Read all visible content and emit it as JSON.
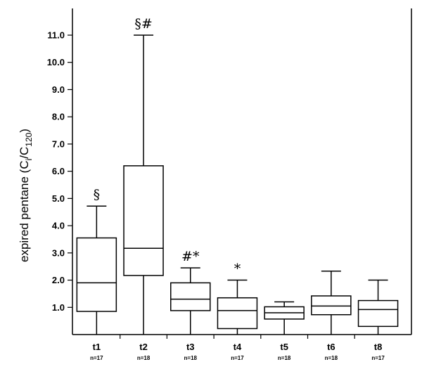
{
  "chart_data": {
    "type": "box",
    "ylabel": {
      "prefix": "expired pentane (C",
      "sub1": "i",
      "mid": "/C",
      "sub2": "120",
      "suffix": ")"
    },
    "ylim": [
      0,
      12
    ],
    "yticks": [
      {
        "value": 1.0,
        "label": "1.0"
      },
      {
        "value": 2.0,
        "label": "2.0"
      },
      {
        "value": 3.0,
        "label": "3.0"
      },
      {
        "value": 4.0,
        "label": "4.0"
      },
      {
        "value": 5.0,
        "label": "5.0"
      },
      {
        "value": 6.0,
        "label": "6.0"
      },
      {
        "value": 7.0,
        "label": "7.0"
      },
      {
        "value": 8.0,
        "label": "8.0"
      },
      {
        "value": 9.0,
        "label": "9.0"
      },
      {
        "value": 10.0,
        "label": "10.0"
      },
      {
        "value": 11.0,
        "label": "11.0"
      }
    ],
    "groups": [
      {
        "label": "t1",
        "n": "n=17",
        "min": 0.0,
        "q1": 0.85,
        "median": 1.9,
        "q3": 3.55,
        "max": 4.72,
        "annotation": "§"
      },
      {
        "label": "t2",
        "n": "n=18",
        "min": 0.0,
        "q1": 2.17,
        "median": 3.17,
        "q3": 6.2,
        "max": 11.0,
        "annotation": "§#"
      },
      {
        "label": "t3",
        "n": "n=18",
        "min": 0.0,
        "q1": 0.88,
        "median": 1.3,
        "q3": 1.9,
        "max": 2.45,
        "annotation": "#*"
      },
      {
        "label": "t4",
        "n": "n=17",
        "min": 0.0,
        "q1": 0.22,
        "median": 0.88,
        "q3": 1.35,
        "max": 2.0,
        "annotation": "*"
      },
      {
        "label": "t5",
        "n": "n=18",
        "min": 0.0,
        "q1": 0.57,
        "median": 0.8,
        "q3": 1.02,
        "max": 1.2,
        "annotation": ""
      },
      {
        "label": "t6",
        "n": "n=18",
        "min": 0.0,
        "q1": 0.73,
        "median": 1.05,
        "q3": 1.42,
        "max": 2.33,
        "annotation": ""
      },
      {
        "label": "t8",
        "n": "n=17",
        "min": 0.0,
        "q1": 0.3,
        "median": 0.92,
        "q3": 1.25,
        "max": 2.0,
        "annotation": ""
      }
    ],
    "colors": {
      "stroke": "#000000",
      "fill": "#ffffff"
    }
  }
}
